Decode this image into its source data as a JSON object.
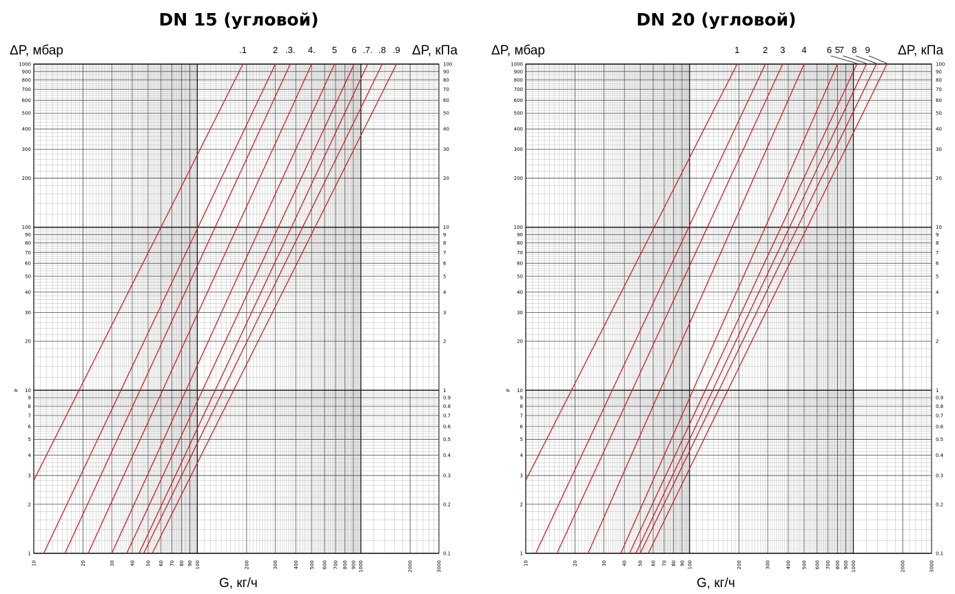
{
  "chart_data": [
    {
      "type": "line",
      "title": "DN 15 (угловой)",
      "ylabel_left": "ΔP, мбар",
      "ylabel_right": "ΔP, кПа",
      "yaxis_side_label": "P",
      "xlabel": "G, кг/ч",
      "x_scale": "log",
      "y_scale": "log",
      "xlim": [
        10,
        3000
      ],
      "ylim": [
        1,
        1000
      ],
      "grid": true,
      "x_ticks": [
        "10",
        "20",
        "30",
        "40",
        "50",
        "60",
        "70",
        "80",
        "90",
        "100",
        "200",
        "300",
        "400",
        "500",
        "600",
        "700",
        "800",
        "900",
        "1000",
        "2000",
        "3000"
      ],
      "y_ticks_left": [
        "1",
        "2",
        "3",
        "4",
        "5",
        "6",
        "7",
        "8",
        "9",
        "10",
        "20",
        "30",
        "40",
        "50",
        "60",
        "70",
        "80",
        "90",
        "100",
        "200",
        "300",
        "400",
        "500",
        "600",
        "700",
        "800",
        "900",
        "1000"
      ],
      "y_ticks_right": [
        "0.1",
        "0.2",
        "0.3",
        "0.4",
        "0.5",
        "0.6",
        "0.7",
        "0.8",
        "0.9",
        "1",
        "2",
        "3",
        "4",
        "5",
        "6",
        "7",
        "8",
        "9",
        "10",
        "20",
        "30",
        "40",
        "50",
        "60",
        "70",
        "80",
        "90",
        "100"
      ],
      "series_color": "#cc1f1f",
      "series": [
        {
          "name": ".1",
          "points": [
            [
              10,
              2.8
            ],
            [
              190,
              1000
            ]
          ]
        },
        {
          "name": "2",
          "points": [
            [
              11.5,
              1
            ],
            [
              300,
              1000
            ]
          ]
        },
        {
          "name": ".3.",
          "points": [
            [
              15.5,
              1
            ],
            [
              370,
              1000
            ]
          ]
        },
        {
          "name": "4.",
          "points": [
            [
              21.5,
              1
            ],
            [
              500,
              1000
            ]
          ]
        },
        {
          "name": "5",
          "points": [
            [
              30,
              1
            ],
            [
              690,
              1000
            ]
          ]
        },
        {
          "name": "6",
          "points": [
            [
              37,
              1
            ],
            [
              910,
              1000
            ]
          ]
        },
        {
          "name": ".7.",
          "points": [
            [
              44,
              1
            ],
            [
              1100,
              1000
            ]
          ]
        },
        {
          "name": ".8",
          "points": [
            [
              47,
              1
            ],
            [
              1350,
              1000
            ]
          ]
        },
        {
          "name": ".9",
          "points": [
            [
              53,
              1
            ],
            [
              1650,
              1000
            ]
          ]
        }
      ]
    },
    {
      "type": "line",
      "title": "DN 20 (угловой)",
      "ylabel_left": "ΔP, мбар",
      "ylabel_right": "ΔP, кПа",
      "yaxis_side_label": "P",
      "xlabel": "G, кг/ч",
      "x_scale": "log",
      "y_scale": "log",
      "xlim": [
        10,
        3000
      ],
      "ylim": [
        1,
        1000
      ],
      "grid": true,
      "x_ticks": [
        "10",
        "20",
        "30",
        "40",
        "50",
        "60",
        "70",
        "80",
        "90",
        "100",
        "200",
        "300",
        "400",
        "500",
        "600",
        "700",
        "800",
        "900",
        "1000",
        "2000",
        "3000"
      ],
      "y_ticks_left": [
        "1",
        "2",
        "3",
        "4",
        "5",
        "6",
        "7",
        "8",
        "9",
        "10",
        "20",
        "30",
        "40",
        "50",
        "60",
        "70",
        "80",
        "90",
        "100",
        "200",
        "300",
        "400",
        "500",
        "600",
        "700",
        "800",
        "900",
        "1000"
      ],
      "y_ticks_right": [
        "0.1",
        "0.2",
        "0.3",
        "0.4",
        "0.5",
        "0.6",
        "0.7",
        "0.8",
        "0.9",
        "1",
        "2",
        "3",
        "4",
        "5",
        "6",
        "7",
        "8",
        "9",
        "10",
        "20",
        "30",
        "40",
        "50",
        "60",
        "70",
        "80",
        "90",
        "100"
      ],
      "series_color": "#cc1f1f",
      "series": [
        {
          "name": "1",
          "points": [
            [
              10,
              2.8
            ],
            [
              195,
              1000
            ]
          ]
        },
        {
          "name": "2",
          "points": [
            [
              11.5,
              1
            ],
            [
              290,
              1000
            ]
          ]
        },
        {
          "name": "3",
          "points": [
            [
              15.5,
              1
            ],
            [
              370,
              1000
            ]
          ]
        },
        {
          "name": "4",
          "points": [
            [
              24,
              1
            ],
            [
              500,
              1000
            ]
          ]
        },
        {
          "name": "5",
          "points": [
            [
              38,
              1
            ],
            [
              800,
              1000
            ]
          ]
        },
        {
          "name": "6",
          "points": [
            [
              43,
              1
            ],
            [
              1050,
              1000
            ]
          ]
        },
        {
          "name": "7",
          "points": [
            [
              47,
              1
            ],
            [
              1200,
              1000
            ]
          ]
        },
        {
          "name": "8",
          "points": [
            [
              50,
              1
            ],
            [
              1380,
              1000
            ]
          ]
        },
        {
          "name": "9",
          "points": [
            [
              56,
              1
            ],
            [
              1600,
              1000
            ]
          ]
        }
      ]
    }
  ]
}
